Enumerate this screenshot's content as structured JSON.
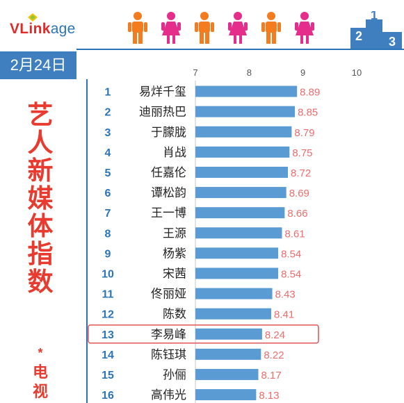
{
  "brand": {
    "logo_main": "VLink",
    "logo_sub": "age",
    "podium_digits": [
      "2",
      "1",
      "3"
    ]
  },
  "date": "2月24日",
  "side_title": "艺人新媒体指数",
  "side_star": "*",
  "side_subtitle": "电视",
  "colors": {
    "bar": "#5b9bd3",
    "value_text": "#ef6c6c",
    "rank_text": "#2b74b8",
    "accent_red": "#e83a2e",
    "highlight_border": "#e35454",
    "figure_orange": "#f47c20",
    "figure_pink": "#e52d8b"
  },
  "figures": [
    "male",
    "female",
    "male",
    "female",
    "male",
    "female"
  ],
  "chart_data": {
    "type": "bar",
    "orientation": "horizontal",
    "xlim": [
      7,
      10
    ],
    "xticks": [
      7,
      8,
      9,
      10
    ],
    "highlight_rank": 13,
    "ranks": [
      1,
      2,
      3,
      4,
      5,
      6,
      7,
      8,
      9,
      10,
      11,
      12,
      13,
      14,
      15,
      16
    ],
    "categories": [
      "易烊千玺",
      "迪丽热巴",
      "于朦胧",
      "肖战",
      "任嘉伦",
      "谭松韵",
      "王一博",
      "王源",
      "杨紫",
      "宋茜",
      "佟丽娅",
      "陈数",
      "李易峰",
      "陈钰琪",
      "孙俪",
      "高伟光"
    ],
    "values": [
      8.89,
      8.85,
      8.79,
      8.75,
      8.72,
      8.69,
      8.66,
      8.61,
      8.54,
      8.54,
      8.43,
      8.41,
      8.24,
      8.22,
      8.17,
      8.13
    ]
  }
}
